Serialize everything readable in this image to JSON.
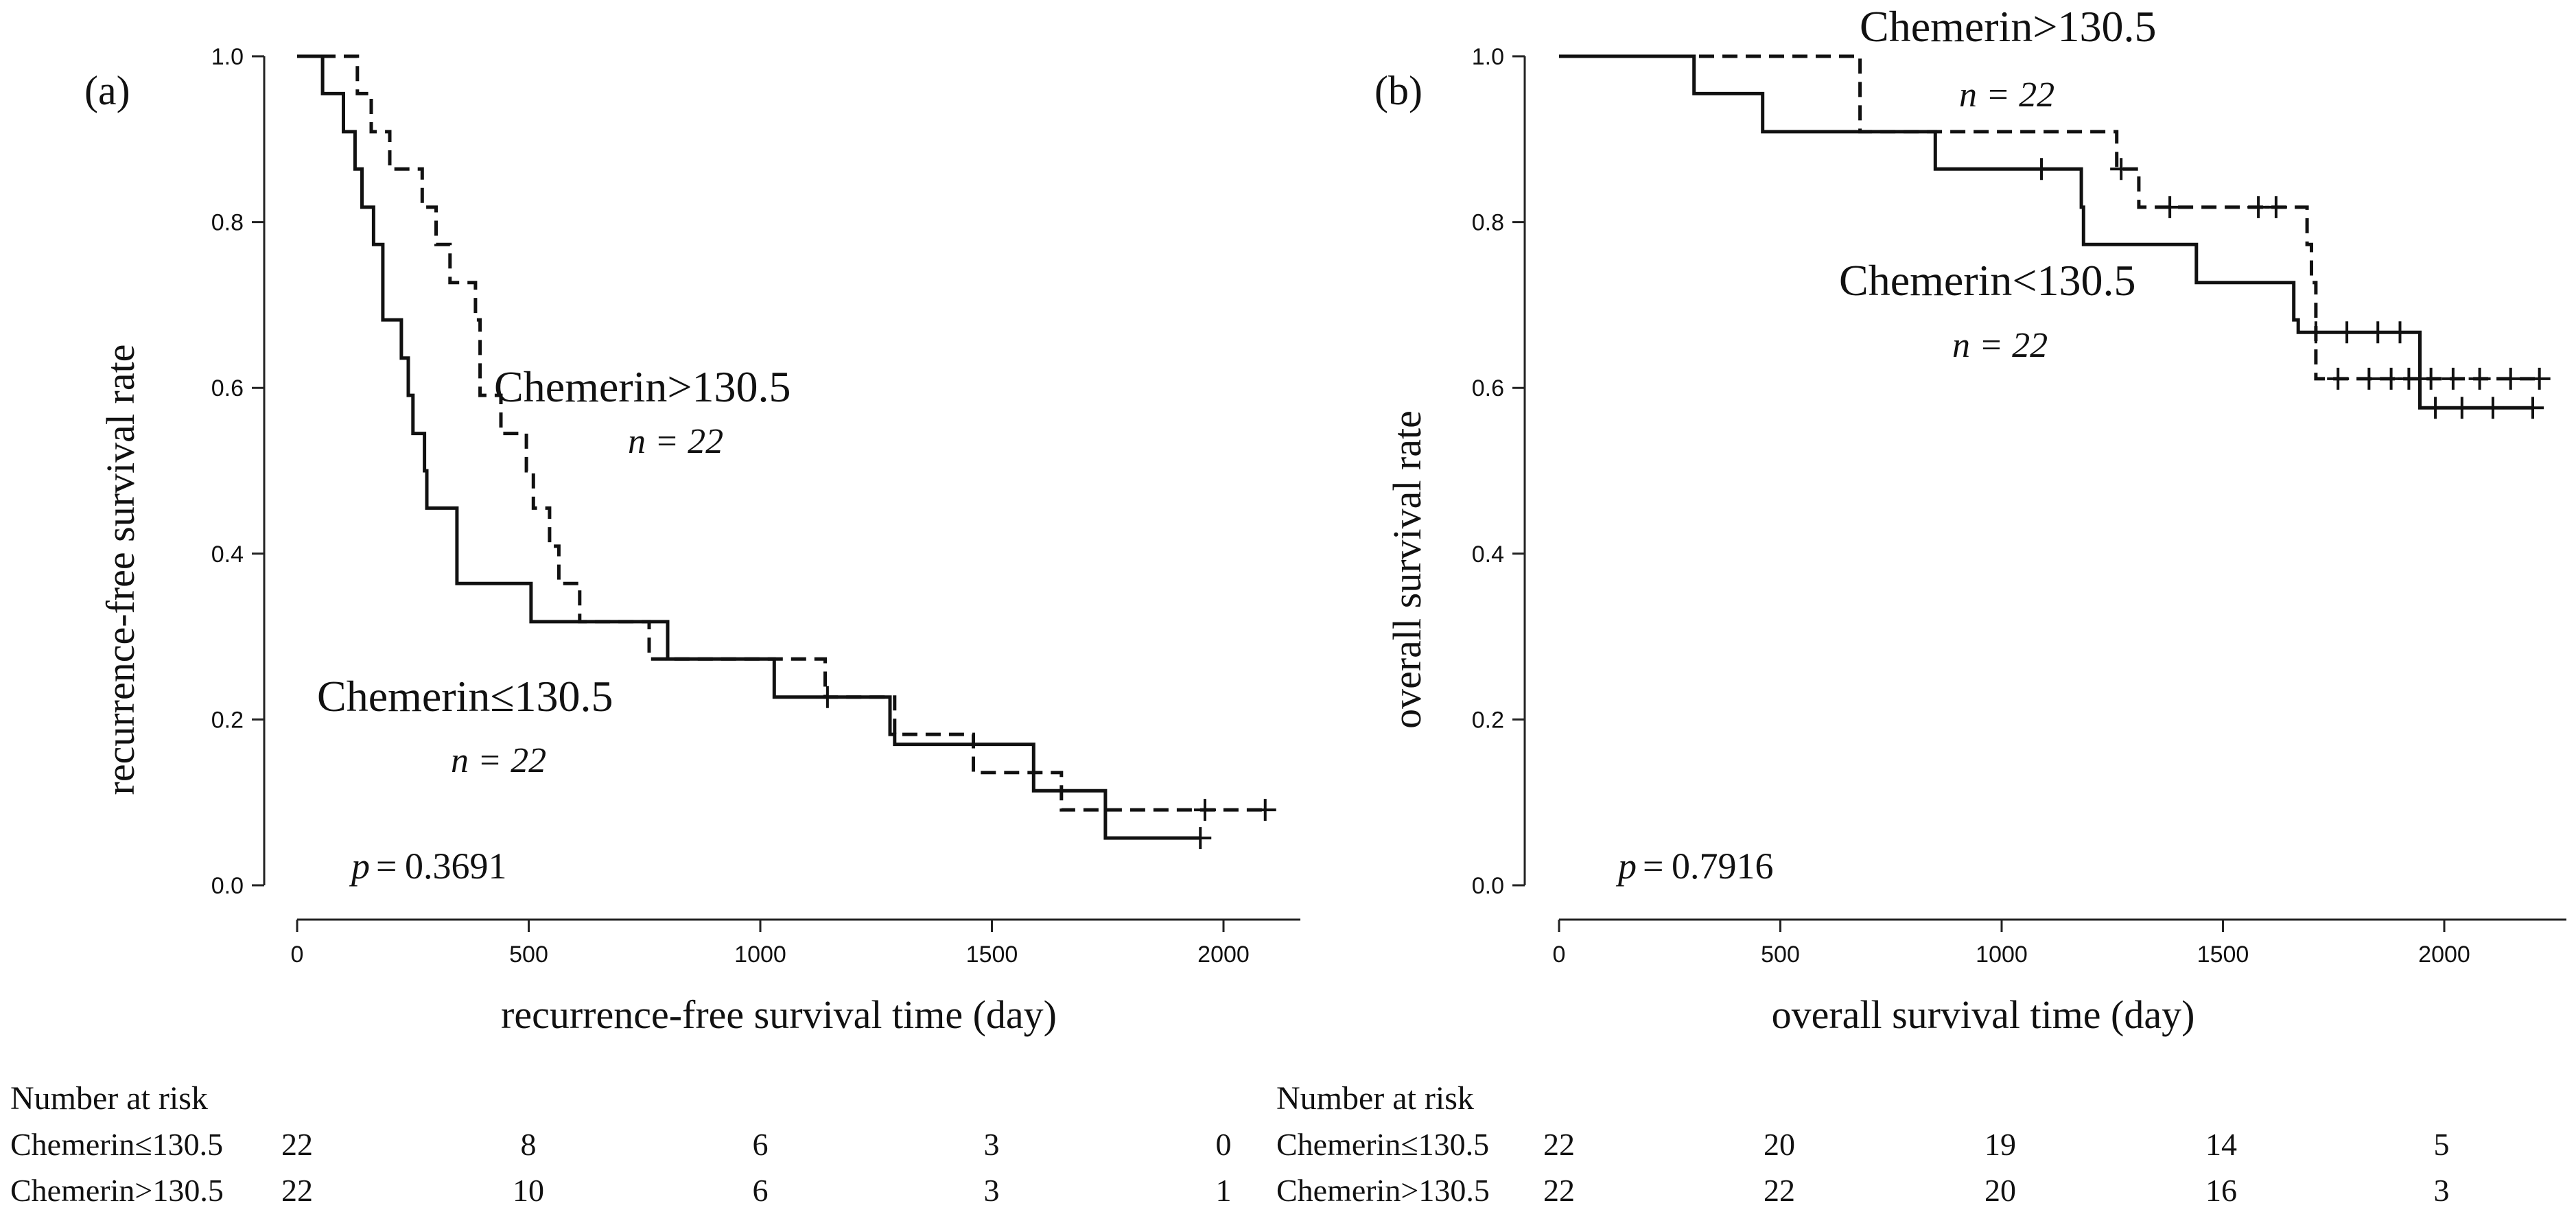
{
  "chart_data": [
    {
      "type": "line",
      "subtype": "kaplan-meier",
      "panel": "(a)",
      "xlabel": "recurrence-free survival time (day)",
      "ylabel": "recurrence-free survival rate",
      "xlim": [
        0,
        2200
      ],
      "ylim": [
        0.0,
        1.0
      ],
      "xticks": [
        "0",
        "500",
        "1000",
        "1500",
        "2000"
      ],
      "yticks": [
        "0.0",
        "0.2",
        "0.4",
        "0.6",
        "0.8",
        "1.0"
      ],
      "p_value": "0.3691",
      "p_symbol": "p",
      "series": [
        {
          "name": "Chemerin≤130.5",
          "n_label": "n = 22",
          "line_style": "solid",
          "steps": [
            [
              0,
              1.0
            ],
            [
              55,
              0.955
            ],
            [
              100,
              0.909
            ],
            [
              125,
              0.864
            ],
            [
              140,
              0.818
            ],
            [
              165,
              0.773
            ],
            [
              185,
              0.682
            ],
            [
              225,
              0.636
            ],
            [
              240,
              0.591
            ],
            [
              250,
              0.545
            ],
            [
              275,
              0.5
            ],
            [
              280,
              0.455
            ],
            [
              345,
              0.364
            ],
            [
              505,
              0.318
            ],
            [
              800,
              0.273
            ],
            [
              1030,
              0.227
            ],
            [
              1280,
              0.182
            ],
            [
              1290,
              0.17
            ],
            [
              1590,
              0.114
            ],
            [
              1745,
              0.057
            ],
            [
              1950,
              0.057
            ]
          ],
          "censored": [
            [
              1145,
              0.227
            ],
            [
              1950,
              0.057
            ]
          ]
        },
        {
          "name": "Chemerin>130.5",
          "n_label": "n = 22",
          "line_style": "dashed",
          "steps": [
            [
              0,
              1.0
            ],
            [
              130,
              0.955
            ],
            [
              160,
              0.909
            ],
            [
              200,
              0.864
            ],
            [
              270,
              0.818
            ],
            [
              300,
              0.773
            ],
            [
              330,
              0.727
            ],
            [
              385,
              0.682
            ],
            [
              395,
              0.591
            ],
            [
              440,
              0.545
            ],
            [
              495,
              0.5
            ],
            [
              510,
              0.455
            ],
            [
              545,
              0.409
            ],
            [
              565,
              0.364
            ],
            [
              610,
              0.318
            ],
            [
              760,
              0.273
            ],
            [
              1140,
              0.227
            ],
            [
              1290,
              0.182
            ],
            [
              1460,
              0.136
            ],
            [
              1650,
              0.091
            ],
            [
              2090,
              0.091
            ]
          ],
          "censored": [
            [
              1960,
              0.091
            ],
            [
              2090,
              0.091
            ]
          ]
        }
      ],
      "risk_table": {
        "header": "Number at risk",
        "rows": [
          {
            "label": "Chemerin≤130.5",
            "values": [
              "22",
              "8",
              "6",
              "3",
              "0"
            ]
          },
          {
            "label": "Chemerin>130.5",
            "values": [
              "22",
              "10",
              "6",
              "3",
              "1"
            ]
          }
        ]
      }
    },
    {
      "type": "line",
      "subtype": "kaplan-meier",
      "panel": "(b)",
      "xlabel": "overall survival time (day)",
      "ylabel": "overall survival rate",
      "xlim": [
        0,
        2250
      ],
      "ylim": [
        0.0,
        1.0
      ],
      "xticks": [
        "0",
        "500",
        "1000",
        "1500",
        "2000"
      ],
      "yticks": [
        "0.0",
        "0.2",
        "0.4",
        "0.6",
        "0.8",
        "1.0"
      ],
      "p_value": "0.7916",
      "p_symbol": "p",
      "series": [
        {
          "name": "Chemerin<130.5",
          "n_label": "n = 22",
          "line_style": "solid",
          "steps": [
            [
              0,
              1.0
            ],
            [
              305,
              0.955
            ],
            [
              460,
              0.909
            ],
            [
              850,
              0.864
            ],
            [
              1180,
              0.818
            ],
            [
              1185,
              0.773
            ],
            [
              1440,
              0.727
            ],
            [
              1660,
              0.682
            ],
            [
              1670,
              0.667
            ],
            [
              1945,
              0.576
            ],
            [
              2200,
              0.576
            ]
          ],
          "censored": [
            [
              1090,
              0.864
            ],
            [
              1710,
              0.667
            ],
            [
              1780,
              0.667
            ],
            [
              1850,
              0.667
            ],
            [
              1900,
              0.667
            ],
            [
              1980,
              0.576
            ],
            [
              2040,
              0.576
            ],
            [
              2110,
              0.576
            ],
            [
              2200,
              0.576
            ]
          ]
        },
        {
          "name": "Chemerin>130.5",
          "n_label": "n = 22",
          "line_style": "dashed",
          "steps": [
            [
              0,
              1.0
            ],
            [
              680,
              0.909
            ],
            [
              1260,
              0.864
            ],
            [
              1310,
              0.818
            ],
            [
              1690,
              0.773
            ],
            [
              1700,
              0.727
            ],
            [
              1710,
              0.611
            ],
            [
              2215,
              0.611
            ]
          ],
          "censored": [
            [
              1270,
              0.864
            ],
            [
              1380,
              0.818
            ],
            [
              1580,
              0.818
            ],
            [
              1620,
              0.818
            ],
            [
              1760,
              0.611
            ],
            [
              1830,
              0.611
            ],
            [
              1880,
              0.611
            ],
            [
              1920,
              0.611
            ],
            [
              1970,
              0.611
            ],
            [
              2020,
              0.611
            ],
            [
              2080,
              0.611
            ],
            [
              2150,
              0.611
            ],
            [
              2215,
              0.611
            ]
          ]
        }
      ],
      "risk_table": {
        "header": "Number at risk",
        "rows": [
          {
            "label": "Chemerin≤130.5",
            "values": [
              "22",
              "20",
              "19",
              "14",
              "5"
            ]
          },
          {
            "label": "Chemerin>130.5",
            "values": [
              "22",
              "22",
              "20",
              "16",
              "3"
            ]
          }
        ]
      }
    }
  ]
}
